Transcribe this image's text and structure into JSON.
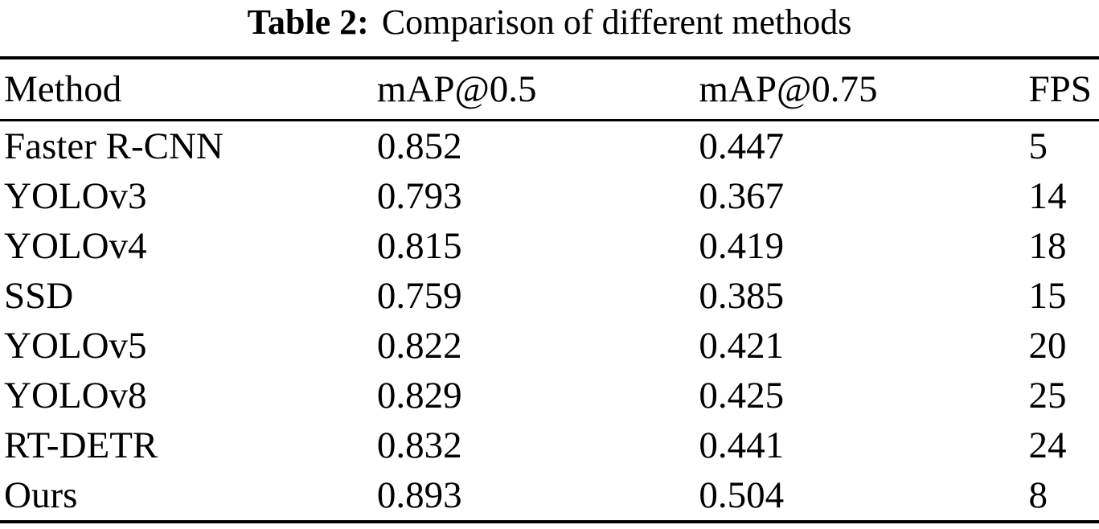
{
  "caption": {
    "label": "Table 2:",
    "text": "Comparison of different methods"
  },
  "table": {
    "columns": [
      "Method",
      "mAP@0.5",
      "mAP@0.75",
      "FPS"
    ],
    "rows": [
      [
        "Faster R-CNN",
        "0.852",
        "0.447",
        "5"
      ],
      [
        "YOLOv3",
        "0.793",
        "0.367",
        "14"
      ],
      [
        "YOLOv4",
        "0.815",
        "0.419",
        "18"
      ],
      [
        "SSD",
        "0.759",
        "0.385",
        "15"
      ],
      [
        "YOLOv5",
        "0.822",
        "0.421",
        "20"
      ],
      [
        "YOLOv8",
        "0.829",
        "0.425",
        "25"
      ],
      [
        "RT-DETR",
        "0.832",
        "0.441",
        "24"
      ],
      [
        "Ours",
        "0.893",
        "0.504",
        "8"
      ]
    ],
    "colors": {
      "text": "#000000",
      "background": "#ffffff",
      "rule": "#000000"
    }
  }
}
